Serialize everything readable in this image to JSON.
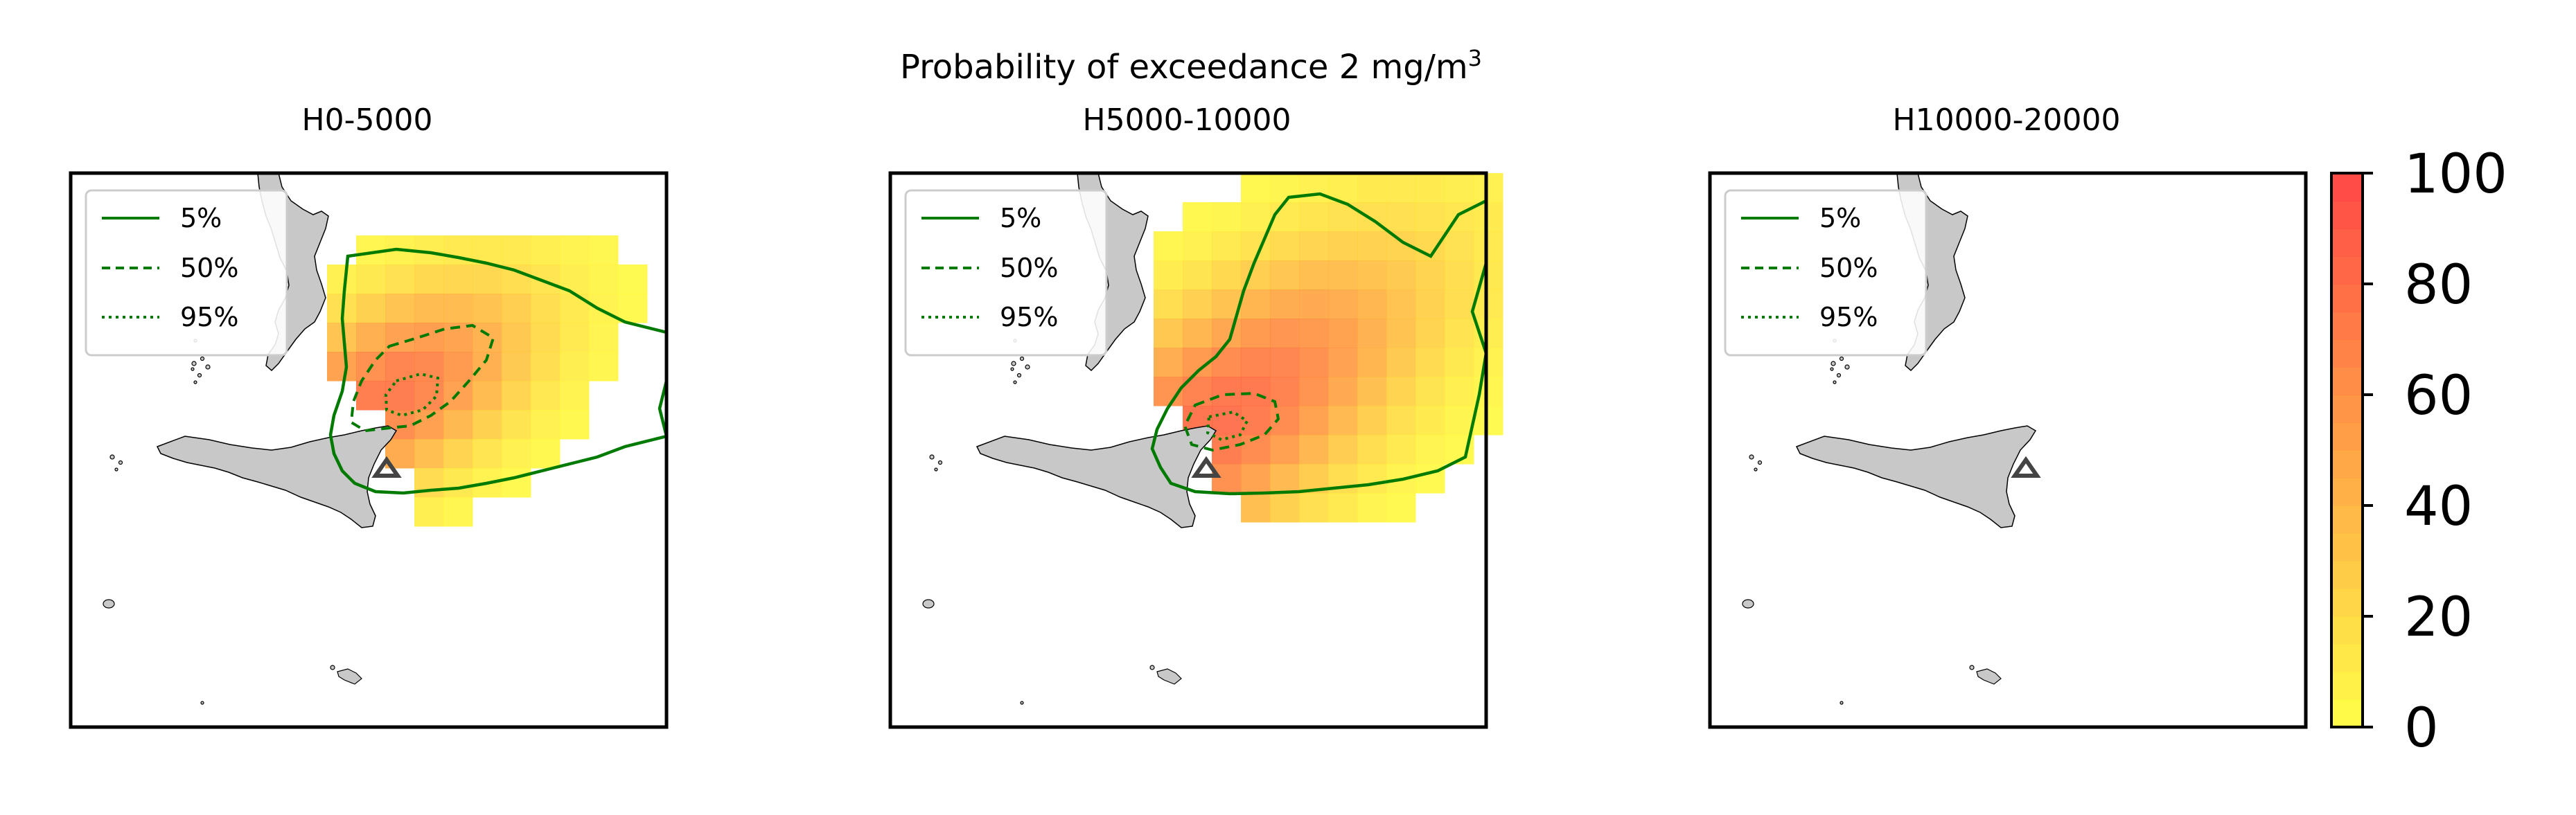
{
  "suptitle": {
    "prefix": "Probability of exceedance 2 mg/m",
    "superscript": "3"
  },
  "panels": [
    {
      "title": "H0-5000",
      "legend": [
        "5%",
        "50%",
        "95%"
      ]
    },
    {
      "title": "H5000-10000",
      "legend": [
        "5%",
        "50%",
        "95%"
      ]
    },
    {
      "title": "H10000-20000",
      "legend": [
        "5%",
        "50%",
        "95%"
      ]
    }
  ],
  "colorbar": {
    "ticks": [
      "0",
      "20",
      "40",
      "60",
      "80",
      "100"
    ],
    "range": [
      0,
      100
    ],
    "low_color": "#ffff33",
    "high_color": "#ff3333"
  },
  "colors": {
    "land": "#c8c8c8",
    "contour": "#007a00",
    "vent_marker": "#444444"
  },
  "chart_data": [
    {
      "type": "heatmap",
      "title": "H0-5000",
      "contours": [
        "5%",
        "50%",
        "95%"
      ],
      "max_probability_percent": 75
    },
    {
      "type": "heatmap",
      "title": "H5000-10000",
      "contours": [
        "5%",
        "50%",
        "95%"
      ],
      "max_probability_percent": 80
    },
    {
      "type": "heatmap",
      "title": "H10000-20000",
      "contours": [
        "5%",
        "50%",
        "95%"
      ],
      "max_probability_percent": 0
    }
  ]
}
